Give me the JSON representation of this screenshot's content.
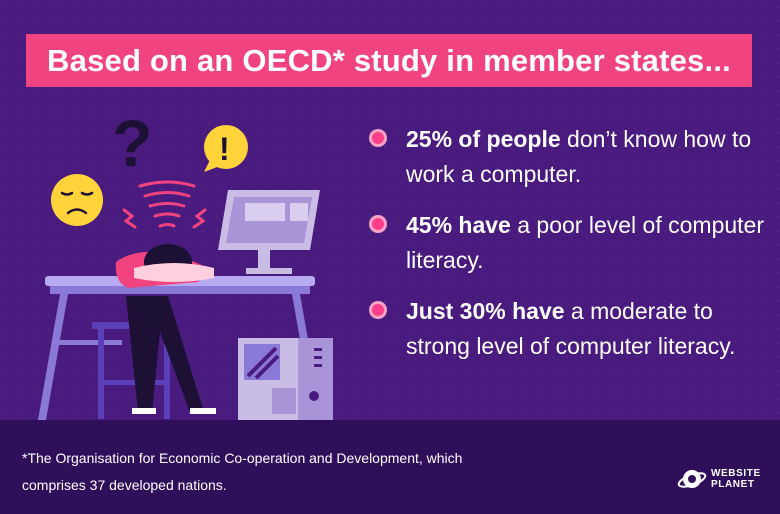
{
  "title": "Based on an OECD* study in member states...",
  "bullets": [
    {
      "bold": "25% of people",
      "rest": " don’t know how to work a computer."
    },
    {
      "bold": "45% have",
      "rest": " a poor level of computer literacy."
    },
    {
      "bold": "Just 30% have",
      "rest": " a moderate to strong level of computer literacy."
    }
  ],
  "footnote": "*The Organisation for Economic Co-operation and Development, which comprises 37 developed nations.",
  "logo": {
    "line1": "WEBSITE",
    "line2": "PLANET"
  },
  "illustration": {
    "question_mark": "?",
    "exclamation_mark": "!",
    "icons": [
      "sad-face-icon",
      "question-mark-icon",
      "exclamation-bubble-icon",
      "dizzy-swirl-icon",
      "computer-monitor-icon",
      "desktop-tower-icon"
    ]
  },
  "colors": {
    "background": "#4a1b7e",
    "banner": "#f0437f",
    "footer": "#2f0f59",
    "bullet": "#ff3d8a"
  }
}
